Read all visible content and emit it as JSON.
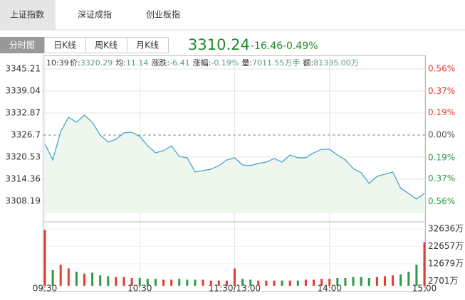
{
  "tabs": [
    "上证指数",
    "深证成指",
    "创业板指"
  ],
  "views": [
    "分时图",
    "日K线",
    "周K线",
    "月K线"
  ],
  "quote": {
    "price": "3310.24",
    "change": "-16.46",
    "change_pct": "-0.49%"
  },
  "info": {
    "time": "10:39",
    "items": [
      {
        "label": "价:",
        "value": "3320.29"
      },
      {
        "label": "均:",
        "value": "11.14"
      },
      {
        "label": "涨跌:",
        "value": "-6.41"
      },
      {
        "label": "涨幅:",
        "value": "-0.19%"
      },
      {
        "label": "量:",
        "value": "7011.55万手"
      },
      {
        "label": "额:",
        "value": "81385.00万"
      }
    ]
  },
  "chart_data": {
    "type": "line",
    "color": "#3aa0c8",
    "area_color": "#eef7ee",
    "x": [
      0,
      5,
      10,
      15,
      20,
      25,
      30,
      35,
      40,
      45,
      50,
      55,
      60,
      65,
      70,
      75,
      80,
      85,
      90,
      95,
      100,
      105,
      110,
      115,
      120,
      125,
      130,
      135,
      140,
      145,
      150,
      155,
      160,
      165,
      170,
      175,
      180,
      185,
      190,
      195,
      200,
      205,
      210,
      215,
      220,
      225,
      230,
      235,
      240
    ],
    "values": [
      3324.31,
      3319.73,
      3327.7,
      3331.68,
      3330.28,
      3332.27,
      3330.28,
      3326.7,
      3324.71,
      3325.51,
      3327.3,
      3327.5,
      3326.3,
      3323.71,
      3321.72,
      3322.32,
      3323.71,
      3320.73,
      3320.33,
      3316.35,
      3316.75,
      3317.15,
      3318.14,
      3319.73,
      3320.33,
      3318.34,
      3318.14,
      3318.74,
      3319.14,
      3320.13,
      3319.14,
      3321.13,
      3320.33,
      3320.33,
      3321.72,
      3322.72,
      3322.72,
      3321.13,
      3319.73,
      3317.35,
      3316.15,
      3313.17,
      3315.16,
      3315.76,
      3316.35,
      3311.78,
      3310.38,
      3308.79,
      3310.38
    ],
    "xlim": [
      0,
      240
    ],
    "xticks": [
      {
        "value": 0,
        "label": "09:30"
      },
      {
        "value": 60,
        "label": "10:30"
      },
      {
        "value": 120,
        "label": "11:30/13:00"
      },
      {
        "value": 180,
        "label": "14:00"
      },
      {
        "value": 240,
        "label": "15:00"
      }
    ],
    "ylim": [
      3304.8,
      3348.2
    ],
    "yticks": [
      3345.21,
      3339.04,
      3332.87,
      3326.7,
      3320.53,
      3314.36,
      3308.19
    ],
    "prev_close": 3326.7,
    "y2lim": [
      -0.66,
      0.65
    ],
    "y2ticks": [
      {
        "value": 0.56,
        "label": "0.56%"
      },
      {
        "value": 0.37,
        "label": "0.37%"
      },
      {
        "value": 0.19,
        "label": "0.19%"
      },
      {
        "value": 0,
        "label": "0.00%"
      },
      {
        "value": -0.19,
        "label": "0.19%"
      },
      {
        "value": -0.37,
        "label": "0.37%"
      },
      {
        "value": -0.56,
        "label": "0.56%"
      }
    ],
    "up_color": "#e03c31",
    "down_color": "#2e9a45",
    "volume": {
      "values": [
        32000,
        9000,
        12000,
        10000,
        8000,
        7000,
        7500,
        6000,
        5500,
        5000,
        5000,
        4500,
        4500,
        4000,
        4000,
        3500,
        3500,
        4000,
        3500,
        3500,
        3500,
        3000,
        3000,
        3000,
        10000,
        4000,
        3500,
        3000,
        3000,
        3000,
        3000,
        3000,
        3000,
        3500,
        3500,
        4000,
        4000,
        4500,
        4500,
        5000,
        5000,
        4500,
        5000,
        5500,
        6000,
        6500,
        8000,
        12000,
        25000
      ],
      "ylim": [
        0,
        34300
      ],
      "yticks": [
        {
          "value": 32636,
          "label": "32636万"
        },
        {
          "value": 22657,
          "label": "22657万"
        },
        {
          "value": 12679,
          "label": "12679万"
        },
        {
          "value": 2701,
          "label": "2701万"
        }
      ]
    }
  }
}
